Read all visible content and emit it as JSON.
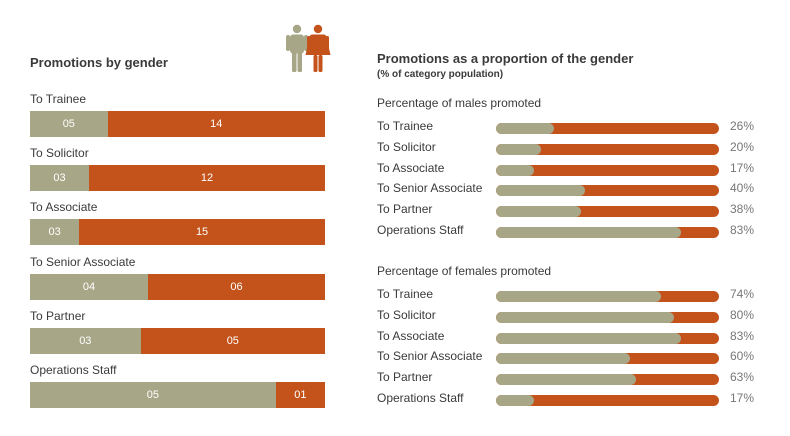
{
  "colors": {
    "male": "#a7a687",
    "female": "#c4531b"
  },
  "icons": {
    "gender": "male-female-figures-icon"
  },
  "chart_data": [
    {
      "type": "bar",
      "stacked": true,
      "orientation": "horizontal",
      "title": "Promotions by gender",
      "categories": [
        "To Trainee",
        "To Solicitor",
        "To Associate",
        "To Senior Associate",
        "To Partner",
        "Operations Staff"
      ],
      "series": [
        {
          "values": [
            5,
            3,
            3,
            4,
            3,
            5
          ],
          "labels": [
            "05",
            "03",
            "03",
            "04",
            "03",
            "05"
          ]
        },
        {
          "values": [
            14,
            12,
            15,
            6,
            5,
            1
          ],
          "labels": [
            "14",
            "12",
            "15",
            "06",
            "05",
            "01"
          ]
        }
      ]
    },
    {
      "type": "bar",
      "orientation": "horizontal",
      "title": "Promotions as a proportion of the gender",
      "subtitle": "(% of category population)",
      "groups": [
        {
          "label": "Percentage of males promoted",
          "categories": [
            "To Trainee",
            "To Solicitor",
            "To Associate",
            "To Senior Associate",
            "To Partner",
            "Operations Staff"
          ],
          "values": [
            26,
            20,
            17,
            40,
            38,
            83
          ],
          "labels": [
            "26%",
            "20%",
            "17%",
            "40%",
            "38%",
            "83%"
          ]
        },
        {
          "label": "Percentage of females promoted",
          "categories": [
            "To Trainee",
            "To Solicitor",
            "To Associate",
            "To Senior Associate",
            "To Partner",
            "Operations Staff"
          ],
          "values": [
            74,
            80,
            83,
            60,
            63,
            17
          ],
          "labels": [
            "74%",
            "80%",
            "83%",
            "60%",
            "63%",
            "17%"
          ]
        }
      ],
      "xlim": [
        0,
        100
      ]
    }
  ]
}
